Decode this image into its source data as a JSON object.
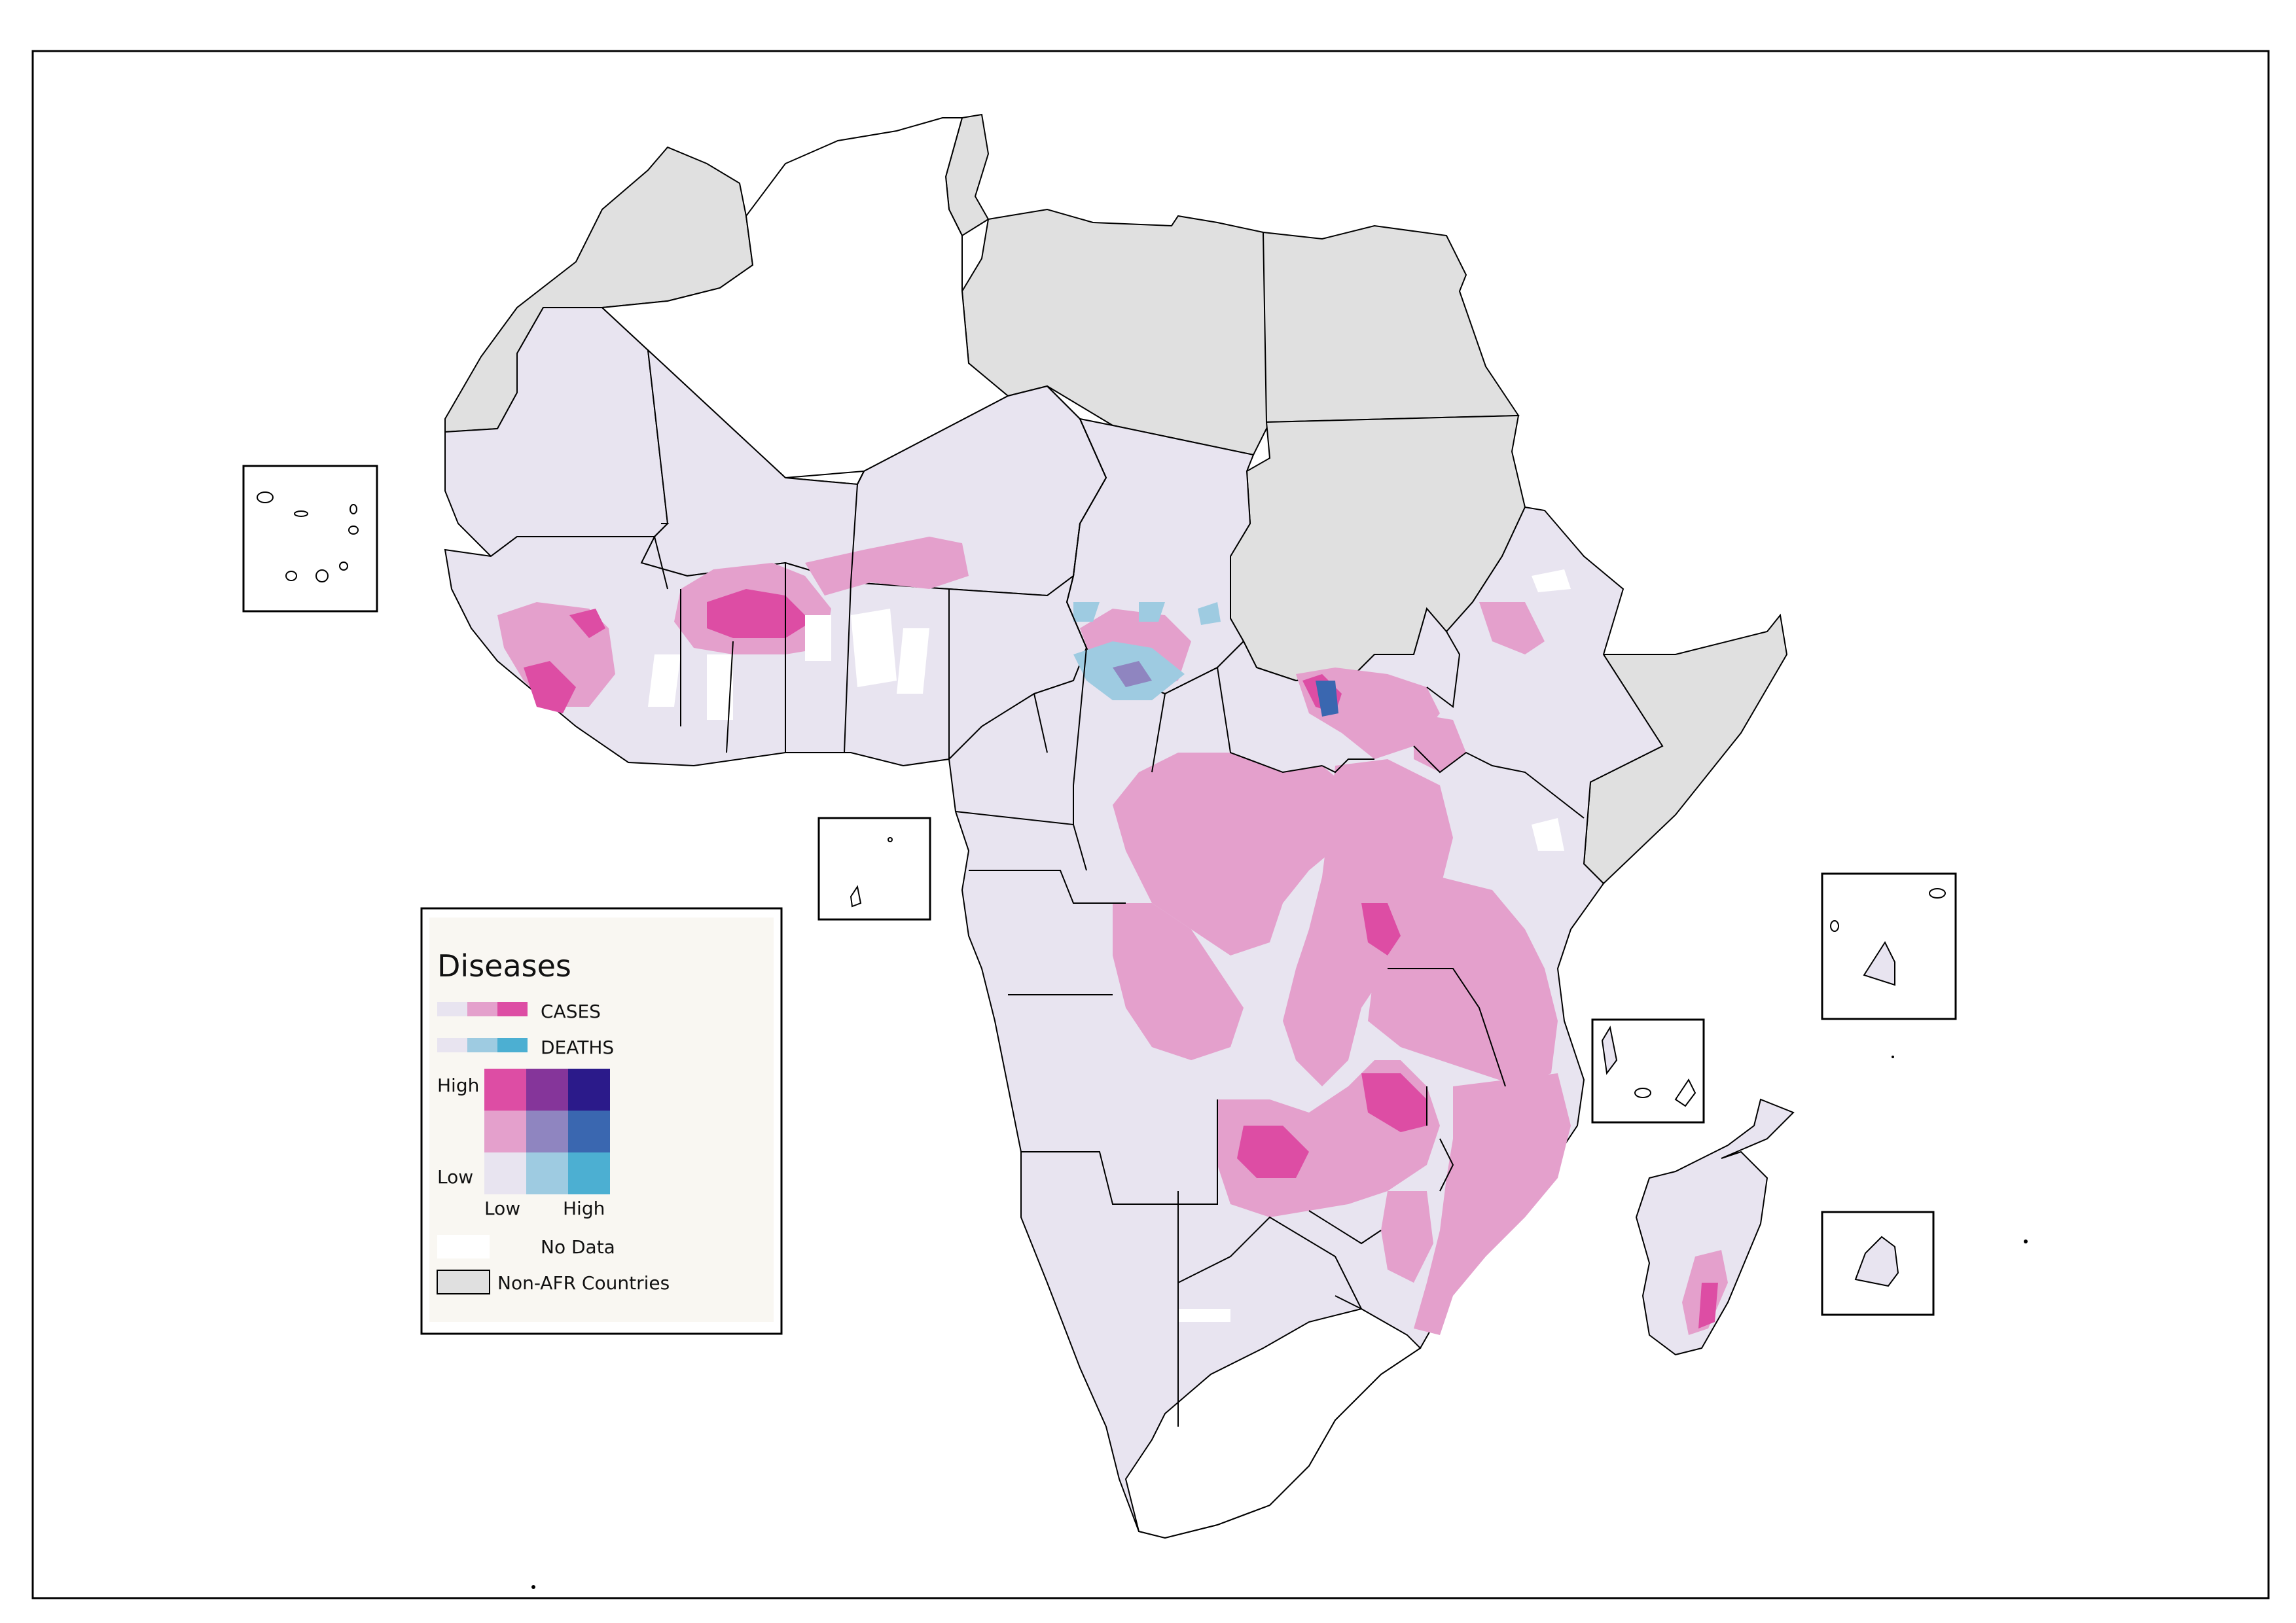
{
  "legend": {
    "title": "Diseases",
    "cases_label": "CASES",
    "deaths_label": "DEATHS",
    "axis_high_y": "High",
    "axis_low_y": "Low",
    "axis_low_x": "Low",
    "axis_high_x": "High",
    "no_data_label": "No Data",
    "non_afr_label": "Non-AFR Countries",
    "cases_ramp": [
      "#e8e4f0",
      "#e4a0cc",
      "#dd4da4"
    ],
    "deaths_ramp": [
      "#e8e4f0",
      "#9ecbe1",
      "#4cafd2"
    ],
    "bivariate_grid": [
      [
        "#dd4da4",
        "#85359a",
        "#2b1a8a"
      ],
      [
        "#e4a0cc",
        "#8f85c0",
        "#3a67b0"
      ],
      [
        "#e8e4f0",
        "#9ecbe1",
        "#4cafd2"
      ]
    ],
    "no_data_color": "#ffffff",
    "non_afr_color": "#e0e0e0"
  },
  "colors": {
    "afr_low": "#e8e4f0",
    "non_afr": "#e0e0e0",
    "no_data": "#ffffff",
    "border": "#000000"
  }
}
